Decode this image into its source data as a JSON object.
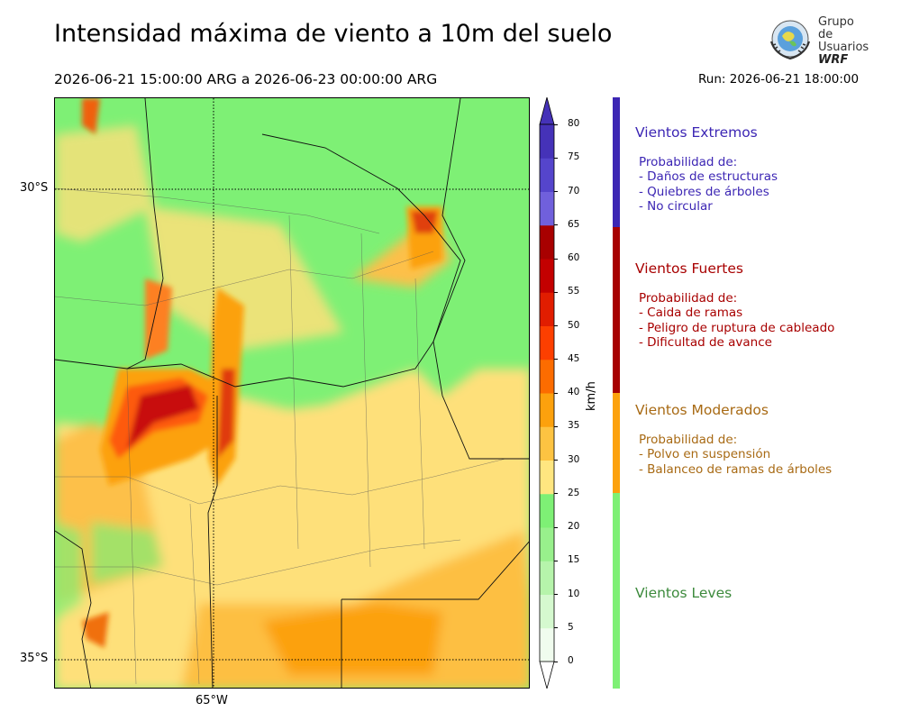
{
  "header": {
    "title": "Intensidad máxima de viento a 10m del suelo",
    "period": "2026-06-21 15:00:00 ARG  a  2026-06-23 00:00:00 ARG",
    "run": "Run: 2026-06-21 18:00:00"
  },
  "logo": {
    "line1": "Grupo de",
    "line2": "Usuarios",
    "line3": "WRF",
    "icon": "globe-seal-icon"
  },
  "map": {
    "lat_labels": [
      "30°S",
      "35°S"
    ],
    "lon_labels": [
      "65°W"
    ],
    "gridlines": "dotted",
    "colors": {
      "land_light": "#7ef075",
      "moderate": "#fee07a",
      "moderate_dark": "#fdba3e",
      "orange": "#fca10d",
      "strong": "#e23d10",
      "very_strong": "#b80b0b"
    }
  },
  "colorbar": {
    "unit": "km/h",
    "ticks": [
      "0",
      "5",
      "10",
      "15",
      "20",
      "25",
      "30",
      "35",
      "40",
      "45",
      "50",
      "55",
      "60",
      "65",
      "70",
      "75",
      "80"
    ],
    "colors": [
      "#f0fcee",
      "#d5f9cf",
      "#b6f4ab",
      "#98f08c",
      "#7ef075",
      "#ffe680",
      "#fdc342",
      "#fca10d",
      "#fc6c00",
      "#fd3f00",
      "#e11d00",
      "#c30000",
      "#a80000",
      "#7060dc",
      "#5545cc",
      "#4532b8"
    ],
    "extend": "both"
  },
  "categories": [
    {
      "title": "Vientos Extremos",
      "color": "#3c26b4",
      "desc": "Probabilidad de:\n- Daños de estructuras\n- Quiebres de árboles\n- No circular"
    },
    {
      "title": "Vientos Fuertes",
      "color": "#a80000",
      "desc": "Probabilidad de:\n- Caida de ramas\n- Peligro de ruptura de cableado\n- Dificultad de avance"
    },
    {
      "title": "Vientos Moderados",
      "color": "#a86a14",
      "desc": "Probabilidad de:\n- Polvo en suspensión\n- Balanceo de ramas de árboles"
    },
    {
      "title": "Vientos Leves",
      "color": "#3c8a3c",
      "desc": ""
    }
  ]
}
